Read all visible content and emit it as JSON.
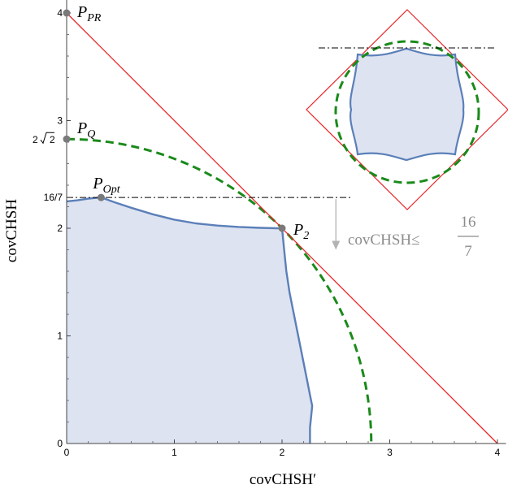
{
  "chart_data": {
    "type": "area",
    "xlabel": "covCHSH′",
    "ylabel": "covCHSH",
    "xlim": [
      0,
      4.08
    ],
    "ylim": [
      0,
      4.15
    ],
    "x_ticks": [
      0,
      1,
      2,
      3,
      4
    ],
    "y_ticks": [
      0,
      1,
      2,
      3,
      4
    ],
    "y_special_ticks": [
      {
        "value": 2.8284,
        "label_main": "2",
        "label_rad": "2"
      },
      {
        "value": 2.2857,
        "label": "16/7"
      }
    ],
    "points": [
      {
        "name": "P",
        "sub": "PR",
        "x": 0,
        "y": 4
      },
      {
        "name": "P",
        "sub": "Q",
        "x": 0,
        "y": 2.8284
      },
      {
        "name": "P",
        "sub": "Opt",
        "x": 0.32,
        "y": 2.2857
      },
      {
        "name": "P",
        "sub": "2",
        "x": 2,
        "y": 2
      }
    ],
    "series": [
      {
        "kind": "filled-region",
        "color": "#5b7fb9",
        "fill": "#dde3f0",
        "x": [
          0,
          0,
          0.1,
          0.2,
          0.32,
          0.45,
          0.6,
          0.8,
          1.0,
          1.2,
          1.4,
          1.6,
          1.8,
          1.95,
          2.0,
          2.02,
          2.04,
          2.07,
          2.11,
          2.15,
          2.19,
          2.23,
          2.26,
          2.28,
          2.27,
          2.26,
          2.26
        ],
        "y": [
          0,
          2.25,
          2.26,
          2.275,
          2.2857,
          2.24,
          2.19,
          2.13,
          2.08,
          2.045,
          2.025,
          2.012,
          2.004,
          2.0,
          2.0,
          1.8,
          1.6,
          1.4,
          1.2,
          1.0,
          0.8,
          0.6,
          0.45,
          0.35,
          0.25,
          0.15,
          0
        ]
      },
      {
        "kind": "dashed-circle",
        "color": "#1a8a1a",
        "radius": 2.8284
      },
      {
        "kind": "line",
        "color": "#e8252a",
        "x": [
          0,
          4
        ],
        "y": [
          4,
          0
        ]
      },
      {
        "kind": "dash-dot-line",
        "color": "#000000",
        "x": [
          0,
          2.65
        ],
        "y": [
          2.2857,
          2.2857
        ]
      }
    ],
    "annotation": {
      "text": "covCHSH≤",
      "num": "16",
      "den": "7",
      "arrow_color": "#b3b3b3",
      "x": 2.5,
      "y_from": 2.27,
      "y_to": 1.8
    },
    "inset": {
      "kind": "symmetric-region",
      "region_color": "#5b7fb9",
      "region_fill": "#dde3f0",
      "circle_color": "#1a8a1a",
      "diamond_color": "#e8252a"
    },
    "grid": false,
    "legend": "none"
  }
}
